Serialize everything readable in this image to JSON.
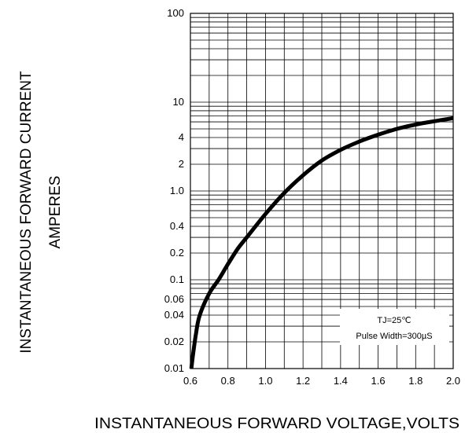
{
  "chart_data": {
    "type": "line",
    "title": "",
    "xlabel": "INSTANTANEOUS FORWARD VOLTAGE,VOLTS",
    "ylabel": "INSTANTANEOUS FORWARD CURRENT",
    "ylabel_unit": "AMPERES",
    "x_scale": "linear",
    "y_scale": "log",
    "xlim": [
      0.6,
      2.0
    ],
    "ylim": [
      0.01,
      100
    ],
    "x_ticks": [
      "0.6",
      "0.8",
      "1.0",
      "1.2",
      "1.4",
      "1.6",
      "1.8",
      "2.0"
    ],
    "y_ticks": [
      "0.01",
      "0.02",
      "0.04",
      "0.06",
      "0.1",
      "0.2",
      "0.4",
      "1.0",
      "2",
      "4",
      "10",
      "100"
    ],
    "grid": true,
    "annotation": {
      "lines": [
        "TJ=25℃",
        "Pulse Width=300µS"
      ],
      "placement": "bottom-right"
    },
    "series": [
      {
        "color": "#000000",
        "x": [
          0.605,
          0.615,
          0.63,
          0.65,
          0.7,
          0.75,
          0.8,
          0.85,
          0.9,
          1.0,
          1.1,
          1.2,
          1.3,
          1.4,
          1.5,
          1.6,
          1.7,
          1.8,
          1.9,
          2.0
        ],
        "y": [
          0.01,
          0.015,
          0.025,
          0.04,
          0.07,
          0.1,
          0.15,
          0.22,
          0.3,
          0.55,
          0.95,
          1.5,
          2.2,
          2.9,
          3.6,
          4.3,
          5.0,
          5.6,
          6.1,
          6.6
        ]
      }
    ]
  }
}
